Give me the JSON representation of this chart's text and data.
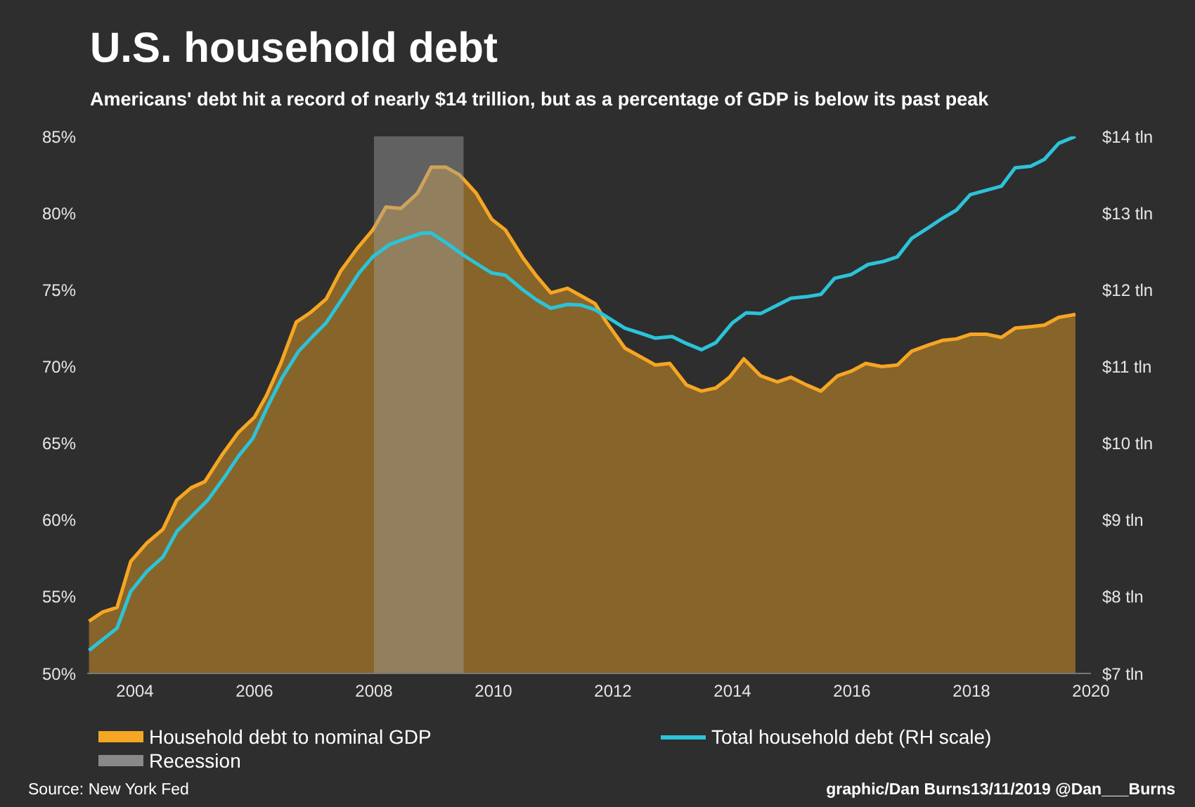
{
  "chart_data": {
    "type": "area",
    "title": "U.S. household debt",
    "subtitle": "Americans' debt hit a record of nearly $14 trillion, but as a percentage of GDP is below its past peak",
    "xlim": [
      2003.2,
      2020
    ],
    "xticks": [
      2004,
      2006,
      2008,
      2010,
      2012,
      2014,
      2016,
      2018,
      2020
    ],
    "ylim": [
      50,
      85
    ],
    "yticks": [
      {
        "value": 50,
        "label": "50%"
      },
      {
        "value": 55,
        "label": "55%"
      },
      {
        "value": 60,
        "label": "60%"
      },
      {
        "value": 65,
        "label": "65%"
      },
      {
        "value": 70,
        "label": "70%"
      },
      {
        "value": 75,
        "label": "75%"
      },
      {
        "value": 80,
        "label": "80%"
      },
      {
        "value": 85,
        "label": "85%"
      }
    ],
    "y2lim": [
      7,
      14
    ],
    "y2ticks": [
      {
        "value": 7,
        "label": "$7 tln"
      },
      {
        "value": 8,
        "label": "$8 tln"
      },
      {
        "value": 9,
        "label": "$9 tln"
      },
      {
        "value": 10,
        "label": "$10 tln"
      },
      {
        "value": 11,
        "label": "$11 tln"
      },
      {
        "value": 12,
        "label": "$12 tln"
      },
      {
        "value": 13,
        "label": "$13 tln"
      },
      {
        "value": 14,
        "label": "$14 tln"
      }
    ],
    "series": [
      {
        "name": "Household debt to nominal GDP",
        "color": "#f5a623",
        "x": [
          2003.23,
          2003.46,
          2003.7,
          2003.93,
          2004.2,
          2004.47,
          2004.7,
          2004.94,
          2005.17,
          2005.45,
          2005.73,
          2006.0,
          2006.2,
          2006.44,
          2006.7,
          2006.93,
          2007.2,
          2007.44,
          2007.72,
          2007.98,
          2008.2,
          2008.45,
          2008.73,
          2008.96,
          2009.2,
          2009.43,
          2009.71,
          2009.97,
          2010.2,
          2010.49,
          2010.72,
          2010.96,
          2011.24,
          2011.47,
          2011.7,
          2011.89,
          2012.2,
          2012.71,
          2012.95,
          2013.23,
          2013.48,
          2013.72,
          2013.95,
          2014.19,
          2014.47,
          2014.75,
          2014.98,
          2015.24,
          2015.48,
          2015.76,
          2015.99,
          2016.23,
          2016.5,
          2016.76,
          2017.0,
          2017.28,
          2017.51,
          2017.75,
          2017.98,
          2018.26,
          2018.5,
          2018.73,
          2018.99,
          2019.22,
          2019.46,
          2019.74
        ],
        "values": [
          53.4,
          54.0,
          54.3,
          57.3,
          58.5,
          59.4,
          61.3,
          62.1,
          62.5,
          64.2,
          65.7,
          66.7,
          68.1,
          70.2,
          72.9,
          73.5,
          74.4,
          76.2,
          77.7,
          78.9,
          80.4,
          80.3,
          81.3,
          83.0,
          83.0,
          82.5,
          81.3,
          79.6,
          78.9,
          77.1,
          75.9,
          74.8,
          75.1,
          74.6,
          74.1,
          72.9,
          71.2,
          70.1,
          70.2,
          68.8,
          68.4,
          68.6,
          69.3,
          70.5,
          69.4,
          69.0,
          69.3,
          68.8,
          68.4,
          69.4,
          69.7,
          70.2,
          70.0,
          70.1,
          71.0,
          71.4,
          71.7,
          71.8,
          72.1,
          72.1,
          71.9,
          72.5,
          72.6,
          72.7,
          73.2,
          73.4
        ]
      },
      {
        "name": "Total household debt (RH scale)",
        "type": "line",
        "axis": "y2",
        "color": "#2cc3d9",
        "x": [
          2003.23,
          2003.7,
          2003.93,
          2004.2,
          2004.47,
          2004.7,
          2004.94,
          2005.22,
          2005.5,
          2005.73,
          2005.97,
          2006.22,
          2006.46,
          2006.74,
          2006.97,
          2007.2,
          2007.49,
          2007.75,
          2007.98,
          2008.26,
          2008.54,
          2008.8,
          2008.96,
          2009.25,
          2009.48,
          2009.74,
          2009.97,
          2010.2,
          2010.49,
          2010.72,
          2010.96,
          2011.24,
          2011.47,
          2011.7,
          2011.89,
          2012.2,
          2012.48,
          2012.71,
          2012.99,
          2013.23,
          2013.48,
          2013.72,
          2014.0,
          2014.23,
          2014.47,
          2014.7,
          2014.98,
          2015.24,
          2015.48,
          2015.71,
          2015.99,
          2016.27,
          2016.53,
          2016.76,
          2017.0,
          2017.28,
          2017.51,
          2017.75,
          2017.98,
          2018.26,
          2018.5,
          2018.73,
          2018.99,
          2019.22,
          2019.46,
          2019.74
        ],
        "values": [
          7.3,
          7.59,
          8.07,
          8.33,
          8.52,
          8.85,
          9.04,
          9.26,
          9.56,
          9.83,
          10.06,
          10.48,
          10.85,
          11.2,
          11.39,
          11.57,
          11.91,
          12.22,
          12.43,
          12.59,
          12.67,
          12.74,
          12.74,
          12.59,
          12.46,
          12.33,
          12.22,
          12.19,
          12.0,
          11.87,
          11.76,
          11.81,
          11.8,
          11.74,
          11.65,
          11.5,
          11.43,
          11.37,
          11.39,
          11.3,
          11.22,
          11.31,
          11.57,
          11.7,
          11.69,
          11.78,
          11.89,
          11.91,
          11.94,
          12.15,
          12.2,
          12.33,
          12.37,
          12.43,
          12.67,
          12.81,
          12.93,
          13.04,
          13.24,
          13.3,
          13.35,
          13.59,
          13.61,
          13.7,
          13.91,
          14.0
        ]
      }
    ],
    "bands": [
      {
        "axis": "x",
        "from": 2008,
        "to": 2009.5,
        "label": "Recession",
        "color": "#a0a0a0"
      }
    ],
    "grid": false,
    "legend": "bottom",
    "marker": "none",
    "annotations": [
      "Source: New York Fed",
      "graphic/Dan Burns13/11/2019 @Dan___Burns"
    ]
  }
}
